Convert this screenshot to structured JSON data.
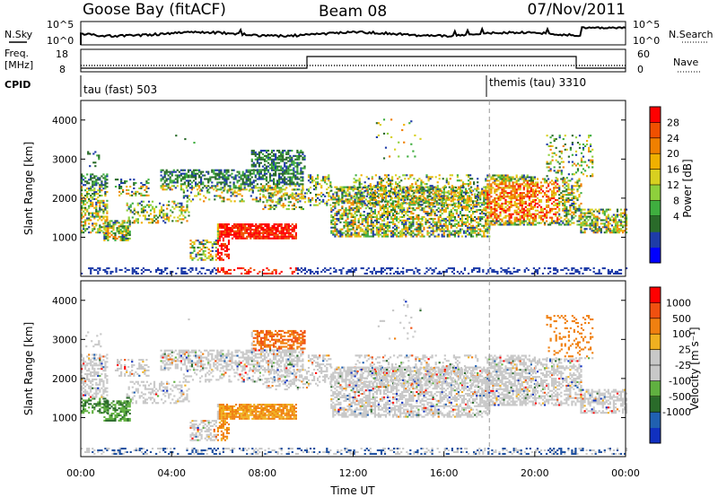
{
  "header": {
    "station": "Goose Bay (fitACF)",
    "beam": "Beam 08",
    "date": "07/Nov/2011"
  },
  "summary_panels": {
    "nsky_label": "N.Sky",
    "nsky_ticks": [
      "10^5",
      "10^0"
    ],
    "nsearch_label": "N.Search",
    "nsearch_ticks": [
      "10^5",
      "10^0"
    ],
    "freq_label": "Freq.",
    "freq_unit": "[MHz]",
    "freq_ticks": [
      "18",
      "8"
    ],
    "nave_label": "Nave",
    "nave_ticks": [
      "60",
      "0"
    ],
    "cpid_label": "CPID",
    "cpid_modes": [
      {
        "name": "tau (fast) 503",
        "start_hour": 0
      },
      {
        "name": "themis (tau) 3310",
        "start_hour": 18
      }
    ]
  },
  "chart_data": [
    {
      "type": "heatmap",
      "panel": "power",
      "ylabel": "Slant Range [km]",
      "yticks": [
        "4000",
        "3000",
        "2000",
        "1000"
      ],
      "ylim": [
        0,
        4500
      ],
      "xlim_hours": [
        0,
        24
      ],
      "colorbar": {
        "label": "Power [dB]",
        "ticks": [
          "28",
          "24",
          "20",
          "16",
          "12",
          "8",
          "4"
        ],
        "colors": [
          "#0000ff",
          "#1e3ca8",
          "#2a6b2a",
          "#3fae3f",
          "#8ed03c",
          "#d8d020",
          "#f0b000",
          "#f08000",
          "#f05000",
          "#ff0000"
        ]
      }
    },
    {
      "type": "heatmap",
      "panel": "velocity",
      "ylabel": "Slant Range [km]",
      "yticks": [
        "4000",
        "3000",
        "2000",
        "1000"
      ],
      "ylim": [
        0,
        4500
      ],
      "xlim_hours": [
        0,
        24
      ],
      "xticks": [
        "00:00",
        "04:00",
        "08:00",
        "12:00",
        "16:00",
        "20:00",
        "00:00"
      ],
      "xlabel": "Time UT",
      "colorbar": {
        "label": "Velocity [m s⁻¹]",
        "ticks": [
          "1000",
          "500",
          "100",
          "25",
          "-25",
          "-100",
          "-500",
          "-1000"
        ],
        "colors": [
          "#1030c0",
          "#2060b0",
          "#2a6b2a",
          "#60b040",
          "#c8c8c8",
          "#c8c8c8",
          "#f0b020",
          "#f08010",
          "#f05010",
          "#ff0000"
        ]
      }
    }
  ]
}
